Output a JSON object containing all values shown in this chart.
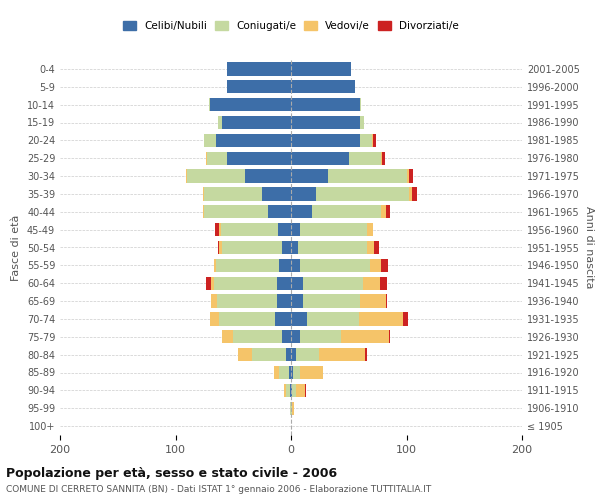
{
  "age_groups": [
    "100+",
    "95-99",
    "90-94",
    "85-89",
    "80-84",
    "75-79",
    "70-74",
    "65-69",
    "60-64",
    "55-59",
    "50-54",
    "45-49",
    "40-44",
    "35-39",
    "30-34",
    "25-29",
    "20-24",
    "15-19",
    "10-14",
    "5-9",
    "0-4"
  ],
  "birth_years": [
    "≤ 1905",
    "1906-1910",
    "1911-1915",
    "1916-1920",
    "1921-1925",
    "1926-1930",
    "1931-1935",
    "1936-1940",
    "1941-1945",
    "1946-1950",
    "1951-1955",
    "1956-1960",
    "1961-1965",
    "1966-1970",
    "1971-1975",
    "1976-1980",
    "1981-1985",
    "1986-1990",
    "1991-1995",
    "1996-2000",
    "2001-2005"
  ],
  "males": {
    "celibi": [
      0,
      0,
      1,
      2,
      4,
      8,
      14,
      12,
      12,
      10,
      8,
      11,
      20,
      25,
      40,
      55,
      65,
      60,
      70,
      55,
      55
    ],
    "coniugati": [
      0,
      1,
      3,
      8,
      30,
      42,
      48,
      52,
      55,
      55,
      52,
      50,
      55,
      50,
      50,
      18,
      10,
      3,
      1,
      0,
      0
    ],
    "vedovi": [
      0,
      0,
      2,
      5,
      12,
      10,
      8,
      5,
      2,
      2,
      2,
      1,
      1,
      1,
      1,
      1,
      0,
      0,
      0,
      0,
      0
    ],
    "divorziati": [
      0,
      0,
      0,
      0,
      0,
      0,
      0,
      0,
      5,
      0,
      1,
      4,
      0,
      0,
      0,
      0,
      0,
      0,
      0,
      0,
      0
    ]
  },
  "females": {
    "nubili": [
      0,
      0,
      1,
      2,
      4,
      8,
      14,
      10,
      10,
      8,
      6,
      8,
      18,
      22,
      32,
      50,
      60,
      60,
      60,
      55,
      52
    ],
    "coniugate": [
      0,
      1,
      3,
      6,
      20,
      35,
      45,
      50,
      52,
      60,
      60,
      58,
      60,
      80,
      68,
      28,
      10,
      3,
      1,
      0,
      0
    ],
    "vedove": [
      0,
      2,
      8,
      20,
      40,
      42,
      38,
      22,
      15,
      10,
      6,
      5,
      4,
      3,
      2,
      1,
      1,
      0,
      0,
      0,
      0
    ],
    "divorziate": [
      0,
      0,
      1,
      0,
      2,
      1,
      4,
      1,
      6,
      6,
      4,
      0,
      4,
      4,
      4,
      2,
      3,
      0,
      0,
      0,
      0
    ]
  },
  "colors": {
    "celibi_nubili": "#3d6ea8",
    "coniugati_e": "#c5d9a0",
    "vedovi_e": "#f5c469",
    "divorziati_e": "#cc2222"
  },
  "xlim": 200,
  "title": "Popolazione per età, sesso e stato civile - 2006",
  "subtitle": "COMUNE DI CERRETO SANNITA (BN) - Dati ISTAT 1° gennaio 2006 - Elaborazione TUTTITALIA.IT",
  "ylabel_left": "Fasce di età",
  "ylabel_right": "Anni di nascita"
}
